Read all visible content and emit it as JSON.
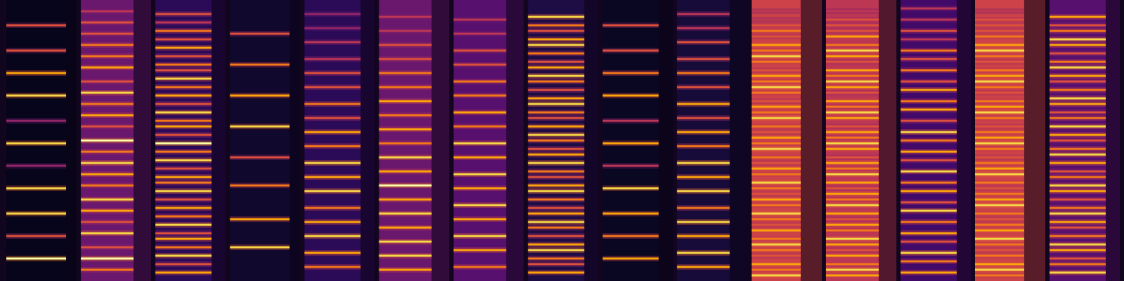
{
  "chart_data": [
    {
      "type": "spectrogram",
      "xlim": [
        0,
        1
      ],
      "ylim": [
        0,
        100
      ],
      "zlim": [
        0,
        1
      ],
      "tick_labels": false,
      "noise": 0.05,
      "end": 0.85,
      "freqs": [
        8,
        16,
        24,
        33,
        41,
        49,
        57,
        66,
        74,
        82,
        91
      ],
      "levels": [
        1,
        0.6,
        0.9,
        0.9,
        0.4,
        0.9,
        0.4,
        0.9,
        0.8,
        0.6,
        0.6
      ]
    },
    {
      "type": "spectrogram",
      "xlim": [
        0,
        1
      ],
      "ylim": [
        0,
        100
      ],
      "zlim": [
        0,
        1
      ],
      "tick_labels": false,
      "noise": 0.3,
      "end": 0.75,
      "freqs": [
        4,
        8,
        12,
        17,
        21,
        25,
        29,
        34,
        38,
        42,
        46,
        50,
        55,
        59,
        63,
        67,
        71,
        76,
        80,
        84,
        88,
        92,
        96
      ],
      "levels": [
        0.7,
        1,
        0.6,
        0.9,
        0.6,
        0.8,
        0.9,
        0.7,
        0.8,
        0.9,
        0.7,
        1,
        0.6,
        0.8,
        0.7,
        0.9,
        0.6,
        0.8,
        0.7,
        0.7,
        0.6,
        0.6,
        0.5
      ]
    },
    {
      "type": "spectrogram",
      "xlim": [
        0,
        1
      ],
      "ylim": [
        0,
        100
      ],
      "zlim": [
        0,
        1
      ],
      "tick_labels": false,
      "noise": 0.15,
      "end": 0.8,
      "freqs": [
        3,
        6,
        9,
        12,
        15,
        17,
        20,
        23,
        26,
        29,
        32,
        35,
        37,
        40,
        43,
        46,
        49,
        52,
        55,
        57,
        60,
        63,
        66,
        69,
        72,
        75,
        77,
        80,
        83,
        86,
        89,
        92,
        95
      ],
      "levels": [
        0.8,
        0.6,
        0.9,
        0.7,
        0.8,
        0.6,
        0.9,
        0.7,
        0.8,
        0.6,
        0.9,
        0.7,
        0.8,
        0.6,
        0.9,
        0.7,
        1,
        0.6,
        0.8,
        0.7,
        0.9,
        0.6,
        0.8,
        0.7,
        0.9,
        0.6,
        0.7,
        0.6,
        0.8,
        0.6,
        0.7,
        0.5,
        0.6
      ]
    },
    {
      "type": "spectrogram",
      "xlim": [
        0,
        1
      ],
      "ylim": [
        0,
        100
      ],
      "zlim": [
        0,
        1
      ],
      "tick_labels": false,
      "noise": 0.08,
      "end": 0.85,
      "freqs": [
        12,
        22,
        34,
        44,
        55,
        66,
        77,
        88
      ],
      "levels": [
        0.9,
        0.8,
        0.7,
        0.6,
        0.9,
        0.8,
        0.7,
        0.6
      ]
    },
    {
      "type": "spectrogram",
      "xlim": [
        0,
        1
      ],
      "ylim": [
        0,
        100
      ],
      "zlim": [
        0,
        1
      ],
      "tick_labels": false,
      "noise": 0.15,
      "end": 0.8,
      "freqs": [
        5,
        10,
        16,
        21,
        26,
        32,
        37,
        42,
        48,
        53,
        58,
        63,
        69,
        74,
        79,
        85,
        90,
        95
      ],
      "levels": [
        0.7,
        0.8,
        0.9,
        0.8,
        0.7,
        0.9,
        0.8,
        0.9,
        0.7,
        0.8,
        0.6,
        0.7,
        0.6,
        0.6,
        0.5,
        0.5,
        0.4,
        0.4
      ]
    },
    {
      "type": "spectrogram",
      "xlim": [
        0,
        1
      ],
      "ylim": [
        0,
        100
      ],
      "zlim": [
        0,
        1
      ],
      "tick_labels": false,
      "noise": 0.3,
      "end": 0.75,
      "freqs": [
        4,
        9,
        14,
        19,
        24,
        29,
        34,
        39,
        44,
        49,
        54,
        59,
        64,
        69,
        74,
        79,
        84,
        89,
        94
      ],
      "levels": [
        0.8,
        0.9,
        0.9,
        0.8,
        0.9,
        0.8,
        1,
        0.8,
        0.9,
        0.7,
        0.8,
        0.7,
        0.8,
        0.7,
        0.7,
        0.6,
        0.6,
        0.5,
        0.5
      ]
    },
    {
      "type": "spectrogram",
      "xlim": [
        0,
        1
      ],
      "ylim": [
        0,
        100
      ],
      "zlim": [
        0,
        1
      ],
      "tick_labels": false,
      "noise": 0.25,
      "end": 0.75,
      "freqs": [
        5,
        11,
        16,
        22,
        27,
        33,
        38,
        44,
        49,
        55,
        60,
        66,
        71,
        77,
        82,
        88,
        93
      ],
      "levels": [
        0.7,
        0.8,
        0.9,
        0.8,
        0.9,
        0.8,
        0.9,
        0.8,
        0.9,
        0.7,
        0.8,
        0.7,
        0.7,
        0.6,
        0.6,
        0.5,
        0.5
      ]
    },
    {
      "type": "spectrogram",
      "xlim": [
        0,
        1
      ],
      "ylim": [
        0,
        100
      ],
      "zlim": [
        0,
        1
      ],
      "tick_labels": false,
      "noise": 0.12,
      "end": 0.8,
      "freqs": [
        3,
        6,
        8,
        11,
        13,
        16,
        19,
        21,
        24,
        26,
        29,
        32,
        34,
        37,
        39,
        42,
        45,
        47,
        50,
        52,
        55,
        58,
        60,
        63,
        65,
        68,
        71,
        73,
        76,
        78,
        81,
        84,
        86,
        89,
        91,
        94
      ],
      "levels": [
        0.8,
        0.6,
        0.7,
        0.9,
        0.8,
        0.6,
        0.7,
        0.9,
        0.8,
        0.6,
        0.7,
        0.9,
        0.8,
        0.6,
        0.7,
        0.9,
        0.8,
        0.6,
        0.7,
        0.9,
        0.8,
        0.6,
        0.7,
        0.9,
        0.8,
        0.6,
        0.7,
        0.9,
        0.8,
        0.6,
        0.7,
        0.9,
        0.8,
        0.6,
        0.7,
        0.9
      ]
    },
    {
      "type": "spectrogram",
      "xlim": [
        0,
        1
      ],
      "ylim": [
        0,
        100
      ],
      "zlim": [
        0,
        1
      ],
      "tick_labels": false,
      "noise": 0.06,
      "end": 0.8,
      "freqs": [
        8,
        16,
        24,
        33,
        41,
        49,
        57,
        66,
        74,
        82,
        91
      ],
      "levels": [
        0.8,
        0.7,
        0.8,
        0.9,
        0.5,
        0.8,
        0.5,
        0.8,
        0.7,
        0.6,
        0.6
      ]
    },
    {
      "type": "spectrogram",
      "xlim": [
        0,
        1
      ],
      "ylim": [
        0,
        100
      ],
      "zlim": [
        0,
        1
      ],
      "tick_labels": false,
      "noise": 0.1,
      "end": 0.75,
      "freqs": [
        5,
        10,
        16,
        21,
        26,
        32,
        37,
        42,
        48,
        53,
        58,
        63,
        69,
        74,
        79,
        85,
        90,
        95
      ],
      "levels": [
        0.8,
        0.9,
        0.8,
        0.9,
        0.7,
        0.9,
        0.8,
        0.9,
        0.7,
        0.8,
        0.6,
        0.8,
        0.6,
        0.7,
        0.6,
        0.6,
        0.5,
        0.5
      ]
    },
    {
      "type": "spectrogram",
      "xlim": [
        0,
        1
      ],
      "ylim": [
        0,
        100
      ],
      "zlim": [
        0,
        1
      ],
      "tick_labels": false,
      "noise": 0.55,
      "end": 0.7,
      "freqs": [
        2,
        4,
        6,
        9,
        11,
        13,
        15,
        18,
        20,
        22,
        24,
        27,
        29,
        31,
        33,
        35,
        38,
        40,
        42,
        44,
        47,
        49,
        51,
        53,
        55,
        58,
        60,
        62,
        64,
        67,
        69,
        71,
        73,
        75,
        78,
        80,
        82,
        84,
        87,
        89,
        91,
        93,
        96
      ],
      "levels": [
        0.9,
        0.7,
        0.8,
        0.6,
        0.7,
        0.9,
        0.7,
        0.8,
        0.6,
        0.7,
        0.9,
        0.7,
        0.8,
        0.6,
        0.7,
        0.9,
        0.7,
        0.8,
        0.6,
        0.7,
        0.9,
        0.7,
        0.8,
        0.6,
        0.7,
        0.9,
        0.7,
        0.8,
        0.6,
        0.7,
        0.9,
        0.7,
        0.8,
        0.6,
        0.7,
        0.9,
        0.7,
        0.8,
        0.6,
        0.7,
        0.6,
        0.5,
        0.5
      ]
    },
    {
      "type": "spectrogram",
      "xlim": [
        0,
        1
      ],
      "ylim": [
        0,
        100
      ],
      "zlim": [
        0,
        1
      ],
      "tick_labels": false,
      "noise": 0.5,
      "end": 0.75,
      "freqs": [
        2,
        4,
        6,
        9,
        11,
        13,
        15,
        18,
        20,
        22,
        24,
        27,
        29,
        31,
        33,
        35,
        38,
        40,
        42,
        44,
        47,
        49,
        51,
        53,
        55,
        58,
        60,
        62,
        64,
        67,
        69,
        71,
        73,
        75,
        78,
        80,
        82,
        84,
        87,
        89,
        91,
        93,
        96
      ],
      "levels": [
        0.8,
        0.9,
        0.7,
        0.8,
        0.6,
        0.8,
        0.9,
        0.7,
        0.8,
        0.6,
        0.8,
        0.9,
        0.7,
        0.8,
        0.6,
        0.8,
        0.9,
        0.7,
        0.8,
        0.6,
        0.8,
        0.9,
        0.7,
        0.8,
        0.6,
        0.8,
        0.9,
        0.7,
        0.8,
        0.6,
        0.8,
        0.9,
        0.7,
        0.8,
        0.6,
        0.8,
        0.9,
        0.7,
        0.8,
        0.6,
        0.6,
        0.6,
        0.5
      ]
    },
    {
      "type": "spectrogram",
      "xlim": [
        0,
        1
      ],
      "ylim": [
        0,
        100
      ],
      "zlim": [
        0,
        1
      ],
      "tick_labels": false,
      "noise": 0.2,
      "end": 0.8,
      "freqs": [
        3,
        7,
        10,
        14,
        17,
        21,
        25,
        28,
        32,
        35,
        39,
        43,
        46,
        50,
        53,
        57,
        61,
        64,
        68,
        71,
        75,
        79,
        82,
        86,
        89,
        93,
        97
      ],
      "levels": [
        0.8,
        0.7,
        0.9,
        0.6,
        0.8,
        0.7,
        0.9,
        0.6,
        0.8,
        0.7,
        0.9,
        0.6,
        0.8,
        0.7,
        0.9,
        0.6,
        0.8,
        0.7,
        0.8,
        0.6,
        0.7,
        0.6,
        0.7,
        0.5,
        0.6,
        0.5,
        0.5
      ]
    },
    {
      "type": "spectrogram",
      "xlim": [
        0,
        1
      ],
      "ylim": [
        0,
        100
      ],
      "zlim": [
        0,
        1
      ],
      "tick_labels": false,
      "noise": 0.55,
      "end": 0.7,
      "freqs": [
        2,
        4,
        6,
        9,
        11,
        13,
        15,
        18,
        20,
        22,
        24,
        27,
        29,
        31,
        33,
        35,
        38,
        40,
        42,
        44,
        47,
        49,
        51,
        53,
        55,
        58,
        60,
        62,
        64,
        67,
        69,
        71,
        73,
        75,
        78,
        80,
        82,
        84,
        87,
        89,
        91,
        93,
        96
      ],
      "levels": [
        0.7,
        0.9,
        0.8,
        0.7,
        0.6,
        0.7,
        0.9,
        0.8,
        0.7,
        0.6,
        0.7,
        0.9,
        0.8,
        0.7,
        0.6,
        0.7,
        0.9,
        0.8,
        0.7,
        0.6,
        0.7,
        0.9,
        0.8,
        0.7,
        0.6,
        0.7,
        0.9,
        0.8,
        0.7,
        0.6,
        0.7,
        0.9,
        0.8,
        0.7,
        0.6,
        0.7,
        0.9,
        0.8,
        0.7,
        0.6,
        0.6,
        0.6,
        0.5
      ]
    },
    {
      "type": "spectrogram",
      "xlim": [
        0,
        1
      ],
      "ylim": [
        0,
        100
      ],
      "zlim": [
        0,
        1
      ],
      "tick_labels": false,
      "noise": 0.25,
      "end": 0.8,
      "freqs": [
        3,
        6,
        8,
        11,
        13,
        16,
        19,
        21,
        24,
        26,
        29,
        32,
        34,
        37,
        39,
        42,
        45,
        47,
        50,
        52,
        55,
        58,
        60,
        63,
        65,
        68,
        71,
        73,
        76,
        78,
        81,
        84,
        86,
        89,
        91,
        94
      ],
      "levels": [
        0.9,
        0.7,
        0.6,
        0.8,
        0.9,
        0.7,
        0.6,
        0.8,
        0.9,
        0.7,
        0.6,
        0.8,
        0.9,
        0.7,
        0.6,
        0.8,
        0.9,
        0.7,
        0.6,
        0.8,
        0.9,
        0.7,
        0.6,
        0.8,
        0.9,
        0.7,
        0.6,
        0.8,
        0.9,
        0.7,
        0.6,
        0.8,
        0.9,
        0.7,
        0.6,
        0.8
      ]
    }
  ]
}
